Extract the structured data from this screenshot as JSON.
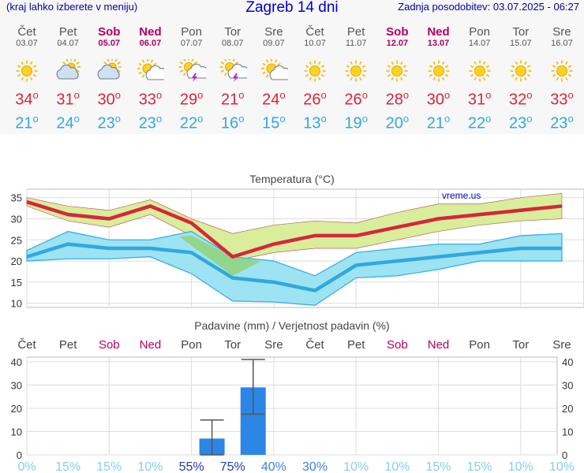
{
  "header": {
    "left_note": "(kraj lahko izberete v meniju)",
    "title": "Zagreb 14 dni",
    "updated": "Zadnja posodobitev: 03.07.2025 - 06:27"
  },
  "days": [
    {
      "name": "Čet",
      "date": "03.07",
      "weekend": false,
      "icon": "sun-icon",
      "tmax": "34",
      "tmin": "21"
    },
    {
      "name": "Pet",
      "date": "04.07",
      "weekend": false,
      "icon": "cloud-sun-icon",
      "tmax": "31",
      "tmin": "24"
    },
    {
      "name": "Sob",
      "date": "05.07",
      "weekend": true,
      "icon": "cloud-sun-icon",
      "tmax": "30",
      "tmin": "23"
    },
    {
      "name": "Ned",
      "date": "06.07",
      "weekend": true,
      "icon": "sun-cloud-icon",
      "tmax": "33",
      "tmin": "23"
    },
    {
      "name": "Pon",
      "date": "07.07",
      "weekend": false,
      "icon": "thunderstorm-icon",
      "tmax": "29",
      "tmin": "22"
    },
    {
      "name": "Tor",
      "date": "08.07",
      "weekend": false,
      "icon": "thunderstorm-icon",
      "tmax": "21",
      "tmin": "16"
    },
    {
      "name": "Sre",
      "date": "09.07",
      "weekend": false,
      "icon": "sun-cloud-icon",
      "tmax": "24",
      "tmin": "15"
    },
    {
      "name": "Čet",
      "date": "10.07",
      "weekend": false,
      "icon": "sun-icon",
      "tmax": "26",
      "tmin": "13"
    },
    {
      "name": "Pet",
      "date": "11.07",
      "weekend": false,
      "icon": "sun-icon",
      "tmax": "26",
      "tmin": "19"
    },
    {
      "name": "Sob",
      "date": "12.07",
      "weekend": true,
      "icon": "sun-icon",
      "tmax": "28",
      "tmin": "20"
    },
    {
      "name": "Ned",
      "date": "13.07",
      "weekend": true,
      "icon": "sun-icon",
      "tmax": "30",
      "tmin": "21"
    },
    {
      "name": "Pon",
      "date": "14.07",
      "weekend": false,
      "icon": "sun-icon",
      "tmax": "31",
      "tmin": "22"
    },
    {
      "name": "Tor",
      "date": "15.07",
      "weekend": false,
      "icon": "sun-icon",
      "tmax": "32",
      "tmin": "23"
    },
    {
      "name": "Sre",
      "date": "16.07",
      "weekend": false,
      "icon": "sun-icon",
      "tmax": "33",
      "tmin": "23"
    }
  ],
  "colors": {
    "max": "#d7263d",
    "min": "#30a8e0",
    "max_band": "#d8ee9a",
    "min_band": "#9ee3f2",
    "overlap": "#8fd47a",
    "bars": "#2b86e6",
    "weekend": "#b3005e"
  },
  "chart_data": [
    {
      "type": "line",
      "title": "Temperatura (°C)",
      "watermark": "vreme.us",
      "x": [
        "03.07",
        "04.07",
        "05.07",
        "06.07",
        "07.07",
        "08.07",
        "09.07",
        "10.07",
        "11.07",
        "12.07",
        "13.07",
        "14.07",
        "15.07",
        "16.07"
      ],
      "ylim": [
        9,
        37
      ],
      "yticks": [
        10,
        15,
        20,
        25,
        30,
        35
      ],
      "grid": true,
      "series": [
        {
          "values": [
            34,
            31,
            30,
            33,
            29,
            21,
            24,
            26,
            26,
            28,
            30,
            31,
            32,
            33
          ]
        },
        {
          "values": [
            21,
            24,
            23,
            23,
            22,
            16,
            15,
            13,
            19,
            20,
            21,
            22,
            23,
            23
          ]
        }
      ],
      "max_band": {
        "upper": [
          35,
          33,
          32,
          34.5,
          30,
          26.5,
          28.5,
          29.5,
          29,
          31.5,
          33.5,
          33.5,
          35,
          36
        ],
        "lower": [
          33,
          29.5,
          28,
          31,
          26,
          20,
          22,
          23,
          23,
          25,
          27,
          28.5,
          29.5,
          30
        ]
      },
      "min_band": {
        "upper": [
          22.5,
          27,
          25,
          25,
          27,
          21,
          20,
          16.5,
          22,
          23,
          24,
          24,
          26,
          26.5
        ],
        "lower": [
          20,
          20.5,
          20.5,
          21,
          17,
          10.5,
          10.3,
          9.5,
          16,
          16.5,
          18,
          20,
          20,
          20
        ]
      }
    },
    {
      "type": "bar",
      "title": "Padavine (mm) / Verjetnost padavin (%)",
      "categories": [
        "Čet",
        "Pet",
        "Sob",
        "Ned",
        "Pon",
        "Tor",
        "Sre",
        "Čet",
        "Pet",
        "Sob",
        "Ned",
        "Pon",
        "Tor",
        "Sre"
      ],
      "weekend": [
        false,
        false,
        true,
        true,
        false,
        false,
        false,
        false,
        false,
        true,
        true,
        false,
        false,
        false
      ],
      "values": [
        0,
        0,
        0,
        0,
        7,
        29,
        0,
        0,
        0,
        0,
        0,
        0,
        0,
        0
      ],
      "error_high": [
        null,
        null,
        null,
        null,
        15,
        41,
        null,
        null,
        null,
        null,
        null,
        null,
        null,
        null
      ],
      "error_low": [
        null,
        null,
        null,
        null,
        0,
        17.5,
        null,
        null,
        null,
        null,
        null,
        null,
        null,
        null
      ],
      "probability": [
        "0%",
        "15%",
        "15%",
        "10%",
        "55%",
        "75%",
        "40%",
        "30%",
        "10%",
        "10%",
        "15%",
        "15%",
        "10%",
        "10%"
      ],
      "ylim": [
        0,
        42
      ],
      "yticks": [
        0,
        10,
        20,
        30,
        40
      ],
      "grid": true
    }
  ]
}
